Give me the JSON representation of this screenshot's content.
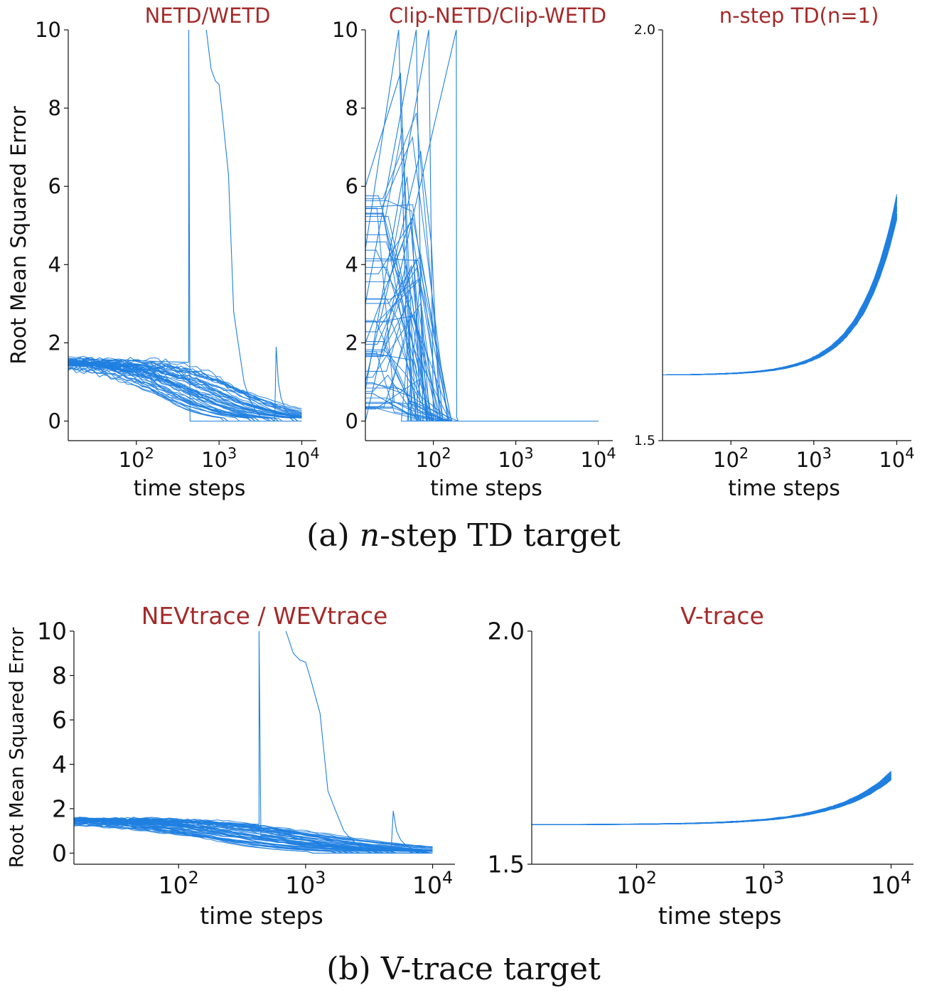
{
  "colors": {
    "series": "#1f80e0",
    "title": "#a52a2a",
    "axis": "#111111",
    "text": "#111111"
  },
  "captions": {
    "a": {
      "label": "(a)",
      "var": "n",
      "text": "-step TD target"
    },
    "b": {
      "label": "(b)",
      "text": "V-trace target"
    }
  },
  "chart_data": [
    {
      "type": "line",
      "title": "NETD/WETD",
      "xlabel": "time steps",
      "ylabel": "Root Mean Squared Error",
      "xscale": "log",
      "xlim": [
        15,
        15000
      ],
      "ylim": [
        -0.5,
        10
      ],
      "xticks": [
        {
          "exp": "2",
          "v": 100
        },
        {
          "exp": "3",
          "v": 1000
        },
        {
          "exp": "4",
          "v": 10000
        }
      ],
      "yticks": [
        {
          "v": 0,
          "label": "0"
        },
        {
          "v": 2,
          "label": "2"
        },
        {
          "v": 4,
          "label": "4"
        },
        {
          "v": 6,
          "label": "6"
        },
        {
          "v": 8,
          "label": "8"
        },
        {
          "v": 10,
          "label": "10"
        }
      ],
      "run_count": 50,
      "run_start_value": 1.6,
      "run_end_value": 0.0,
      "outliers": [
        {
          "x": [
            15,
            430,
            430,
            445,
            10000
          ],
          "y": [
            1.6,
            1.5,
            10,
            0.0,
            0.0
          ]
        },
        {
          "x": [
            700,
            800,
            900,
            1000,
            1100,
            1300,
            1500,
            1700,
            2000,
            2300,
            2700,
            3200,
            4000
          ],
          "y": [
            10,
            9.0,
            8.7,
            8.6,
            7.8,
            6.3,
            2.8,
            2.0,
            1.0,
            0.6,
            0.3,
            0.1,
            0.0
          ]
        },
        {
          "x": [
            4700,
            4900,
            5200,
            5600,
            6300,
            7500,
            10000
          ],
          "y": [
            0.0,
            1.9,
            1.0,
            0.6,
            0.3,
            0.1,
            0.2
          ]
        }
      ]
    },
    {
      "type": "line",
      "title": "Clip-NETD/Clip-WETD",
      "xlabel": "time steps",
      "ylabel": "",
      "xscale": "log",
      "xlim": [
        15,
        15000
      ],
      "ylim": [
        -0.5,
        10
      ],
      "xticks": [
        {
          "exp": "2",
          "v": 100
        },
        {
          "exp": "3",
          "v": 1000
        },
        {
          "exp": "4",
          "v": 10000
        }
      ],
      "yticks": [
        {
          "v": 0,
          "label": "0"
        },
        {
          "v": 2,
          "label": "2"
        },
        {
          "v": 4,
          "label": "4"
        },
        {
          "v": 6,
          "label": "6"
        },
        {
          "v": 8,
          "label": "8"
        },
        {
          "v": 10,
          "label": "10"
        }
      ],
      "run_count": 50,
      "run_start_range": [
        0.3,
        6.0
      ],
      "run_end_value": 0.0,
      "spikes": [
        {
          "x": [
            15,
            40,
            55,
            200,
            10000
          ],
          "y": [
            6.0,
            8.9,
            0.5,
            0.0,
            0.0
          ]
        },
        {
          "x": [
            15,
            38,
            50,
            10000
          ],
          "y": [
            4.4,
            10,
            0.0,
            0.0
          ]
        },
        {
          "x": [
            15,
            62,
            75,
            10000
          ],
          "y": [
            3.0,
            10,
            0.0,
            0.0
          ]
        },
        {
          "x": [
            15,
            70,
            95,
            120,
            10000
          ],
          "y": [
            1.0,
            6.9,
            4.5,
            0.0,
            0.0
          ]
        },
        {
          "x": [
            15,
            55,
            70,
            10000
          ],
          "y": [
            2.0,
            5.2,
            0.0,
            0.0
          ]
        },
        {
          "x": [
            15,
            88,
            100,
            10000
          ],
          "y": [
            0.8,
            10,
            0.0,
            0.0
          ]
        },
        {
          "x": [
            15,
            190,
            192,
            200,
            10000
          ],
          "y": [
            0.0,
            10,
            0.1,
            0.0,
            0.0
          ]
        }
      ]
    },
    {
      "type": "line",
      "title": "n-step TD(n=1)",
      "xlabel": "time steps",
      "ylabel": "",
      "xscale": "log",
      "xlim": [
        15,
        15000
      ],
      "ylim": [
        1.5,
        2.0
      ],
      "xticks": [
        {
          "exp": "2",
          "v": 100
        },
        {
          "exp": "3",
          "v": 1000
        },
        {
          "exp": "4",
          "v": 10000
        }
      ],
      "yticks": [
        {
          "v": 1.5,
          "label": "1.5"
        },
        {
          "v": 2.0,
          "label": "2.0"
        }
      ],
      "run_count": 40,
      "run_start_value": 1.58,
      "run_end_range": [
        1.77,
        1.8
      ]
    },
    {
      "type": "line",
      "title": "NEVtrace / WEVtrace",
      "xlabel": "time steps",
      "ylabel": "Root Mean Squared Error",
      "xscale": "log",
      "xlim": [
        15,
        15000
      ],
      "ylim": [
        -0.5,
        10
      ],
      "xticks": [
        {
          "exp": "2",
          "v": 100
        },
        {
          "exp": "3",
          "v": 1000
        },
        {
          "exp": "4",
          "v": 10000
        }
      ],
      "yticks": [
        {
          "v": 0,
          "label": "0"
        },
        {
          "v": 2,
          "label": "2"
        },
        {
          "v": 4,
          "label": "4"
        },
        {
          "v": 6,
          "label": "6"
        },
        {
          "v": 8,
          "label": "8"
        },
        {
          "v": 10,
          "label": "10"
        }
      ],
      "run_count": 50,
      "run_start_value": 1.6,
      "run_end_value": 0.0,
      "outliers": [
        {
          "x": [
            15,
            430,
            430,
            445,
            10000
          ],
          "y": [
            1.6,
            1.3,
            10,
            0.8,
            0.0
          ]
        },
        {
          "x": [
            700,
            800,
            900,
            1000,
            1100,
            1300,
            1500,
            1700,
            2000,
            2300,
            2700,
            3200,
            4000
          ],
          "y": [
            10,
            9.0,
            8.7,
            8.6,
            7.8,
            6.3,
            2.8,
            2.0,
            1.0,
            0.6,
            0.3,
            0.1,
            0.0
          ]
        },
        {
          "x": [
            4700,
            4900,
            5200,
            5600,
            6300,
            7500,
            10000
          ],
          "y": [
            0.0,
            1.9,
            1.0,
            0.6,
            0.3,
            0.1,
            0.0
          ]
        }
      ]
    },
    {
      "type": "line",
      "title": "V-trace",
      "xlabel": "time steps",
      "ylabel": "",
      "xscale": "log",
      "xlim": [
        15,
        15000
      ],
      "ylim": [
        1.5,
        2.0
      ],
      "xticks": [
        {
          "exp": "2",
          "v": 100
        },
        {
          "exp": "3",
          "v": 1000
        },
        {
          "exp": "4",
          "v": 10000
        }
      ],
      "yticks": [
        {
          "v": 1.5,
          "label": "1.5"
        },
        {
          "v": 2.0,
          "label": "2.0"
        }
      ],
      "run_count": 40,
      "run_start_value": 1.585,
      "run_end_range": [
        1.68,
        1.7
      ]
    }
  ]
}
